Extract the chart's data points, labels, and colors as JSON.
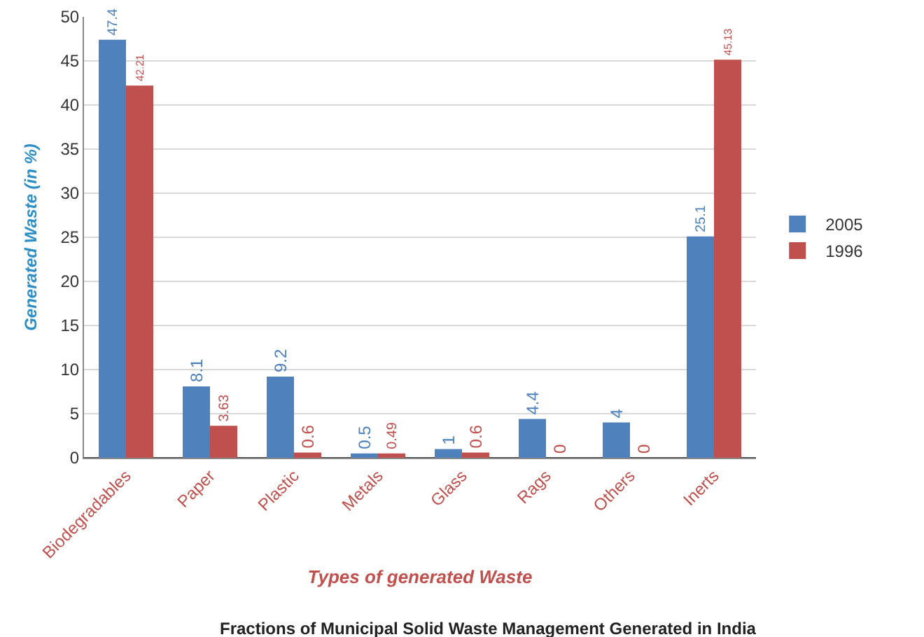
{
  "chart_data": {
    "type": "bar",
    "title": "Fractions of Municipal Solid Waste Management Generated in India",
    "xlabel": "Types of generated Waste",
    "ylabel": "Generated Waste (in %)",
    "categories": [
      "Biodegradables",
      "Paper",
      "Plastic",
      "Metals",
      "Glass",
      "Rags",
      "Others",
      "Inerts"
    ],
    "series": [
      {
        "name": "2005",
        "color": "#4f81bd",
        "values": [
          47.4,
          8.1,
          9.2,
          0.5,
          1,
          4.4,
          4,
          25.1
        ]
      },
      {
        "name": "1996",
        "color": "#c0504d",
        "values": [
          42.21,
          3.63,
          0.6,
          0.49,
          0.6,
          0,
          0,
          45.13
        ]
      }
    ],
    "ylim": [
      0,
      50
    ],
    "yticks": [
      0,
      5,
      10,
      15,
      20,
      25,
      30,
      35,
      40,
      45,
      50
    ],
    "grid": "y",
    "legend": "right",
    "data_labels": true
  }
}
